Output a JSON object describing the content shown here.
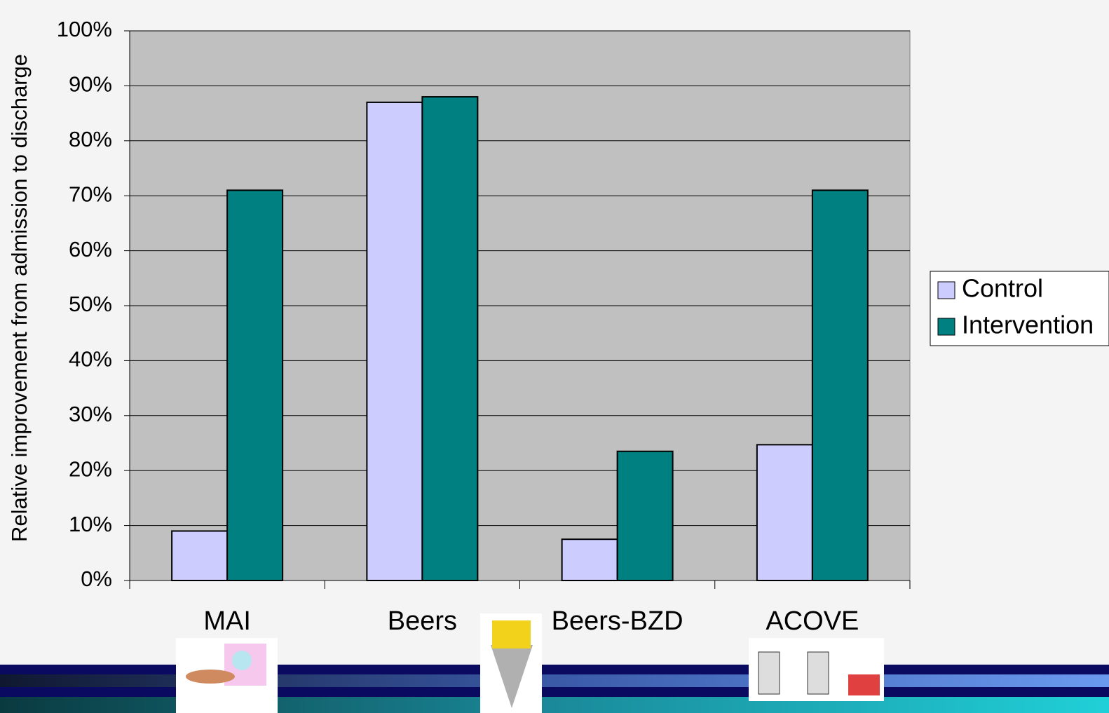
{
  "chart_data": {
    "type": "bar",
    "y_label": "Relative improvement from admission to discharge",
    "categories": [
      "MAI",
      "Beers",
      "Beers-BZD",
      "ACOVE"
    ],
    "series": [
      {
        "name": "Control",
        "color": "#ccccff",
        "values": [
          9,
          87,
          7.5,
          24.7
        ]
      },
      {
        "name": "Intervention",
        "color": "#008080",
        "values": [
          71,
          88,
          23.5,
          71
        ]
      }
    ],
    "ylim": [
      0,
      100
    ],
    "yticks": [
      {
        "value": 0,
        "label": "0%"
      },
      {
        "value": 10,
        "label": "10%"
      },
      {
        "value": 20,
        "label": "20%"
      },
      {
        "value": 30,
        "label": "30%"
      },
      {
        "value": 40,
        "label": "40%"
      },
      {
        "value": 50,
        "label": "50%"
      },
      {
        "value": 60,
        "label": "60%"
      },
      {
        "value": 70,
        "label": "70%"
      },
      {
        "value": 80,
        "label": "80%"
      },
      {
        "value": 90,
        "label": "90%"
      },
      {
        "value": 100,
        "label": "100%"
      }
    ],
    "grid": true,
    "legend": "right"
  }
}
